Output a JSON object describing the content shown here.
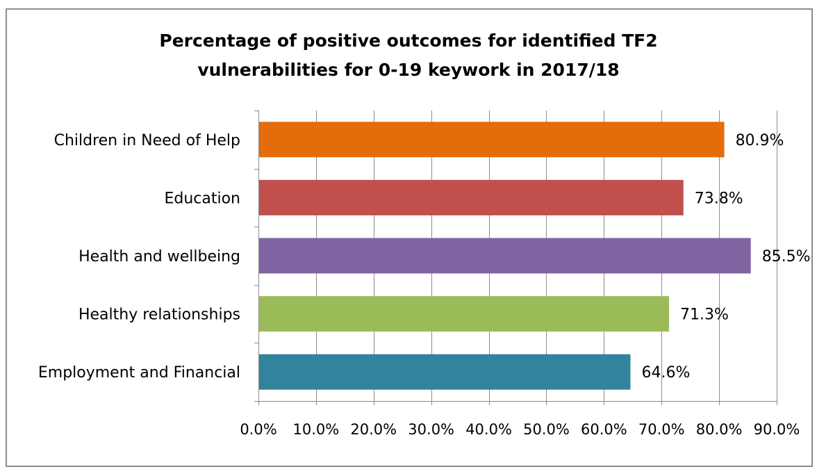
{
  "chart_data": {
    "type": "bar",
    "orientation": "horizontal",
    "title_lines": [
      "Percentage of positive outcomes for identified TF2",
      "vulnerabilities for 0-19 keywork in 2017/18"
    ],
    "categories": [
      "Children in Need of Help",
      "Education",
      "Health and wellbeing",
      "Healthy relationships",
      "Employment and Financial"
    ],
    "values": [
      80.9,
      73.8,
      85.5,
      71.3,
      64.6
    ],
    "value_labels": [
      "80.9%",
      "73.8%",
      "85.5%",
      "71.3%",
      "64.6%"
    ],
    "bar_colors": [
      "#e46c0a",
      "#c0504d",
      "#8064a2",
      "#9bbb59",
      "#31849b"
    ],
    "xlim": [
      0,
      90
    ],
    "x_ticks": [
      0,
      10,
      20,
      30,
      40,
      50,
      60,
      70,
      80,
      90
    ],
    "x_tick_labels": [
      "0.0%",
      "10.0%",
      "20.0%",
      "30.0%",
      "40.0%",
      "50.0%",
      "60.0%",
      "70.0%",
      "80.0%",
      "90.0%"
    ],
    "grid": "vertical",
    "legend": "none",
    "xlabel": "",
    "ylabel": ""
  }
}
